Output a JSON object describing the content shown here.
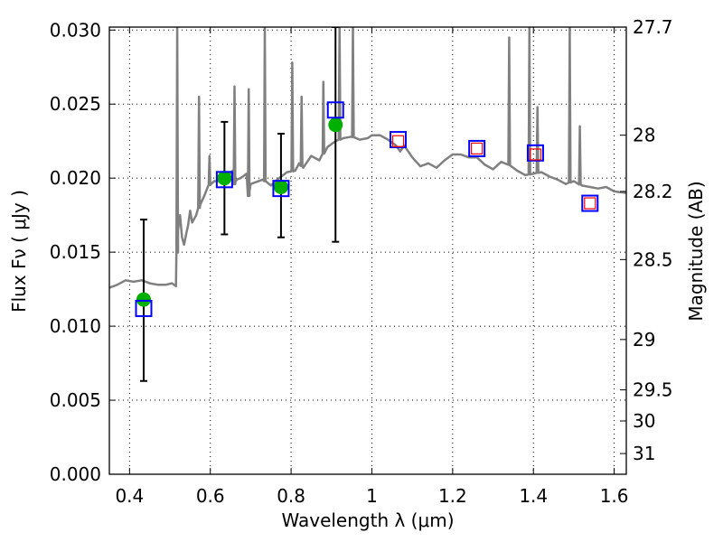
{
  "chart_data": {
    "type": "line",
    "xlabel": "Wavelength  λ (μm)",
    "ylabel": "Flux  Fν  ( μJy )",
    "y2label": "Magnitude (AB)",
    "xlim": [
      0.35,
      1.63
    ],
    "ylim": [
      0.0,
      0.0302
    ],
    "x_ticks": [
      0.4,
      0.6,
      0.8,
      1.0,
      1.2,
      1.4,
      1.6
    ],
    "x_tick_labels": [
      "0.4",
      "0.6",
      "0.8",
      "1",
      "1.2",
      "1.4",
      "1.6"
    ],
    "y_ticks": [
      0.0,
      0.005,
      0.01,
      0.015,
      0.02,
      0.025,
      0.03
    ],
    "y_tick_labels": [
      "0.000",
      "0.005",
      "0.010",
      "0.015",
      "0.020",
      "0.025",
      "0.030"
    ],
    "y2_ticks": [
      {
        "label": "27.7",
        "flux": 0.0302
      },
      {
        "label": "28",
        "flux": 0.0229
      },
      {
        "label": "28.2",
        "flux": 0.0191
      },
      {
        "label": "28.5",
        "flux": 0.0145
      },
      {
        "label": "29",
        "flux": 0.0091
      },
      {
        "label": "29.5",
        "flux": 0.0057
      },
      {
        "label": "30",
        "flux": 0.0036
      },
      {
        "label": "31",
        "flux": 0.0014
      }
    ],
    "grid": true,
    "colors": {
      "spectrum": "#808080",
      "observed": "#00b000",
      "errorbar": "#000000",
      "model_box_outer": "#0000ff",
      "model_box_inner": "#ff0000"
    },
    "series": [
      {
        "style": "line",
        "x": [
          0.35,
          0.37,
          0.39,
          0.41,
          0.43,
          0.45,
          0.47,
          0.49,
          0.505,
          0.515,
          0.52,
          0.525,
          0.53,
          0.535,
          0.54,
          0.545,
          0.55,
          0.555,
          0.565,
          0.575,
          0.585,
          0.595,
          0.61,
          0.625,
          0.64,
          0.655,
          0.66,
          0.665,
          0.675,
          0.69,
          0.695,
          0.7,
          0.71,
          0.73,
          0.75,
          0.77,
          0.79,
          0.81,
          0.82,
          0.83,
          0.85,
          0.87,
          0.89,
          0.91,
          0.93,
          0.95,
          0.97,
          0.99,
          1.0,
          1.02,
          1.04,
          1.06,
          1.07,
          1.08,
          1.1,
          1.12,
          1.14,
          1.16,
          1.18,
          1.2,
          1.22,
          1.24,
          1.26,
          1.28,
          1.3,
          1.32,
          1.34,
          1.36,
          1.38,
          1.4,
          1.42,
          1.44,
          1.46,
          1.48,
          1.5,
          1.52,
          1.54,
          1.56,
          1.58,
          1.6,
          1.63
        ],
        "y": [
          0.0126,
          0.0128,
          0.0131,
          0.013,
          0.0131,
          0.0129,
          0.0128,
          0.0128,
          0.0129,
          0.0127,
          0.0165,
          0.0175,
          0.016,
          0.0155,
          0.0162,
          0.0168,
          0.0178,
          0.017,
          0.0175,
          0.0182,
          0.0188,
          0.0195,
          0.0198,
          0.0198,
          0.02,
          0.0205,
          0.0196,
          0.0199,
          0.02,
          0.0203,
          0.0188,
          0.0196,
          0.0197,
          0.0199,
          0.0195,
          0.02,
          0.0204,
          0.0205,
          0.021,
          0.0207,
          0.0215,
          0.0212,
          0.0221,
          0.0225,
          0.0227,
          0.0228,
          0.0226,
          0.0227,
          0.0229,
          0.0229,
          0.0226,
          0.0222,
          0.0218,
          0.0222,
          0.0214,
          0.0208,
          0.021,
          0.0207,
          0.0212,
          0.0216,
          0.0216,
          0.0214,
          0.0214,
          0.0209,
          0.0206,
          0.0211,
          0.0209,
          0.0205,
          0.0202,
          0.0203,
          0.0204,
          0.0201,
          0.0199,
          0.0196,
          0.0198,
          0.0195,
          0.0194,
          0.0193,
          0.0194,
          0.0191,
          0.019
        ],
        "spikes": [
          {
            "x": 0.518,
            "y": 0.0302
          },
          {
            "x": 0.572,
            "y": 0.0255
          },
          {
            "x": 0.598,
            "y": 0.0215
          },
          {
            "x": 0.66,
            "y": 0.0262
          },
          {
            "x": 0.695,
            "y": 0.026
          },
          {
            "x": 0.735,
            "y": 0.0302
          },
          {
            "x": 0.803,
            "y": 0.0278
          },
          {
            "x": 0.826,
            "y": 0.0255
          },
          {
            "x": 0.88,
            "y": 0.0265
          },
          {
            "x": 0.92,
            "y": 0.0302
          },
          {
            "x": 0.953,
            "y": 0.0302
          },
          {
            "x": 1.34,
            "y": 0.0295
          },
          {
            "x": 1.39,
            "y": 0.0302
          },
          {
            "x": 1.41,
            "y": 0.0248
          },
          {
            "x": 1.49,
            "y": 0.0302
          },
          {
            "x": 1.515,
            "y": 0.0235
          }
        ]
      },
      {
        "style": "points-with-errorbars",
        "points": [
          {
            "x": 0.435,
            "y": 0.0118,
            "yerr_low": 0.0063,
            "yerr_high": 0.0172
          },
          {
            "x": 0.635,
            "y": 0.02,
            "yerr_low": 0.0162,
            "yerr_high": 0.0238
          },
          {
            "x": 0.775,
            "y": 0.0194,
            "yerr_low": 0.016,
            "yerr_high": 0.023
          },
          {
            "x": 0.91,
            "y": 0.0236,
            "yerr_low": 0.0157,
            "yerr_high": 0.0302
          }
        ]
      },
      {
        "style": "open-squares",
        "points": [
          {
            "x": 0.435,
            "y": 0.0112
          },
          {
            "x": 0.635,
            "y": 0.0199
          },
          {
            "x": 0.775,
            "y": 0.0193
          },
          {
            "x": 0.91,
            "y": 0.0246
          },
          {
            "x": 1.065,
            "y": 0.0226
          },
          {
            "x": 1.26,
            "y": 0.022
          },
          {
            "x": 1.405,
            "y": 0.0217
          },
          {
            "x": 1.54,
            "y": 0.0183
          }
        ]
      },
      {
        "style": "inner-squares",
        "points": [
          {
            "x": 1.065,
            "y": 0.0225
          },
          {
            "x": 1.26,
            "y": 0.022
          },
          {
            "x": 1.405,
            "y": 0.0216
          },
          {
            "x": 1.54,
            "y": 0.0183
          }
        ]
      }
    ]
  }
}
